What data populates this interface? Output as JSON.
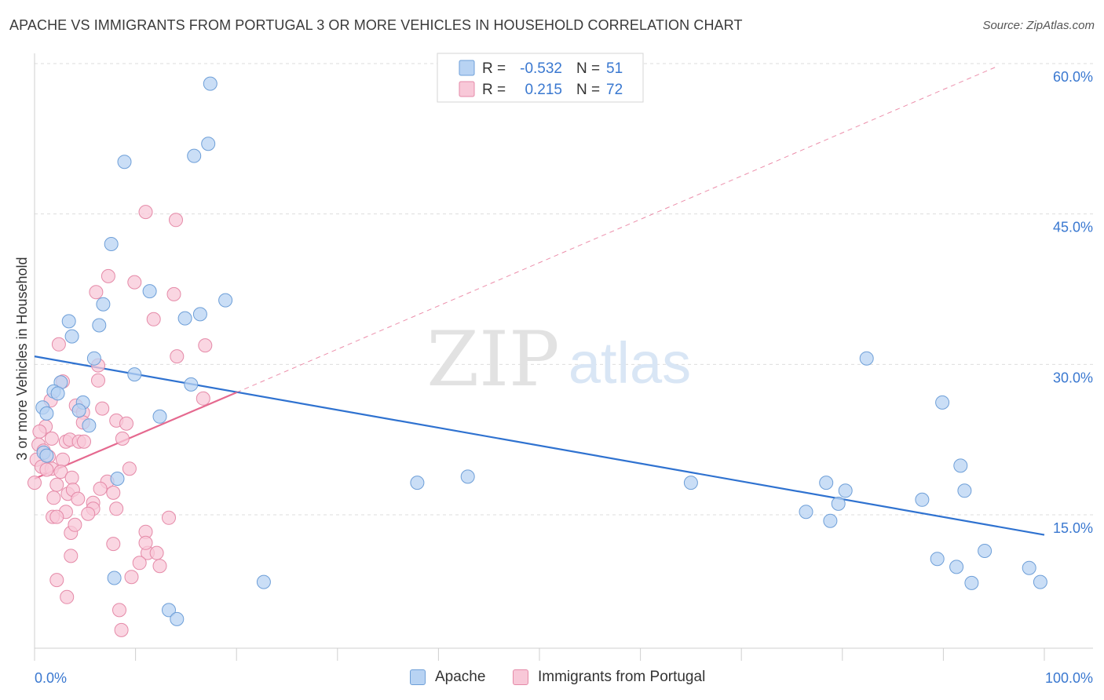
{
  "title": "APACHE VS IMMIGRANTS FROM PORTUGAL 3 OR MORE VEHICLES IN HOUSEHOLD CORRELATION CHART",
  "source": "Source: ZipAtlas.com",
  "watermark": {
    "zip": "ZIP",
    "atlas": "atlas"
  },
  "colors": {
    "apache_fill": "#b8d3f3",
    "apache_stroke": "#6e9fd8",
    "apache_line": "#2f72d0",
    "portugal_fill": "#f8c8d8",
    "portugal_stroke": "#e58aa8",
    "portugal_line": "#e5698f",
    "value_text": "#3a78d0",
    "grid": "#dddddd"
  },
  "legend_top": {
    "rows": [
      {
        "r_label": "R =",
        "r_value": "-0.532",
        "n_label": "N =",
        "n_value": "51"
      },
      {
        "r_label": "R =",
        "r_value": "0.215",
        "n_label": "N =",
        "n_value": "72"
      }
    ]
  },
  "legend_bottom": [
    "Apache",
    "Immigrants from Portugal"
  ],
  "chart_data": {
    "type": "scatter",
    "title": "APACHE VS IMMIGRANTS FROM PORTUGAL 3 OR MORE VEHICLES IN HOUSEHOLD CORRELATION CHART",
    "xlabel": "",
    "ylabel": "3 or more Vehicles in Household",
    "xlim": [
      0,
      100
    ],
    "ylim": [
      0,
      60
    ],
    "x_tick_labels": [
      "0.0%",
      "100.0%"
    ],
    "y_ticks": [
      15,
      30,
      45,
      60
    ],
    "y_tick_labels": [
      "15.0%",
      "30.0%",
      "45.0%",
      "60.0%"
    ],
    "grid": true,
    "legend_position": "top-center",
    "series": [
      {
        "name": "Apache",
        "R": -0.532,
        "N": 51,
        "trend": {
          "x": [
            0,
            100
          ],
          "y": [
            30.8,
            13.0
          ]
        },
        "points": [
          [
            17.4,
            58.0
          ],
          [
            17.2,
            52.0
          ],
          [
            15.8,
            50.8
          ],
          [
            8.9,
            50.2
          ],
          [
            7.6,
            42.0
          ],
          [
            11.4,
            37.3
          ],
          [
            18.9,
            36.4
          ],
          [
            6.8,
            36.0
          ],
          [
            16.4,
            35.0
          ],
          [
            14.9,
            34.6
          ],
          [
            3.4,
            34.3
          ],
          [
            6.4,
            33.9
          ],
          [
            3.7,
            32.8
          ],
          [
            5.9,
            30.6
          ],
          [
            9.9,
            29.0
          ],
          [
            15.5,
            28.0
          ],
          [
            2.6,
            28.2
          ],
          [
            1.9,
            27.3
          ],
          [
            2.3,
            27.1
          ],
          [
            4.8,
            26.2
          ],
          [
            0.8,
            25.7
          ],
          [
            4.4,
            25.4
          ],
          [
            1.2,
            25.1
          ],
          [
            12.4,
            24.8
          ],
          [
            5.4,
            23.9
          ],
          [
            0.9,
            21.2
          ],
          [
            1.2,
            20.9
          ],
          [
            8.2,
            18.6
          ],
          [
            7.9,
            8.7
          ],
          [
            22.7,
            8.3
          ],
          [
            13.3,
            5.5
          ],
          [
            14.1,
            4.6
          ],
          [
            37.9,
            18.2
          ],
          [
            42.9,
            18.8
          ],
          [
            65.0,
            18.2
          ],
          [
            82.4,
            30.6
          ],
          [
            89.9,
            26.2
          ],
          [
            91.7,
            19.9
          ],
          [
            92.1,
            17.4
          ],
          [
            78.4,
            18.2
          ],
          [
            80.3,
            17.4
          ],
          [
            79.6,
            16.1
          ],
          [
            76.4,
            15.3
          ],
          [
            78.8,
            14.4
          ],
          [
            87.9,
            16.5
          ],
          [
            89.4,
            10.6
          ],
          [
            94.1,
            11.4
          ],
          [
            91.3,
            9.8
          ],
          [
            92.8,
            8.2
          ],
          [
            98.5,
            9.7
          ],
          [
            99.6,
            8.3
          ]
        ]
      },
      {
        "name": "Immigrants from Portugal",
        "R": 0.215,
        "N": 72,
        "trend": {
          "x": [
            0,
            20
          ],
          "y": [
            18.6,
            27.2
          ]
        },
        "dash_extension": {
          "x": [
            20,
            95.3
          ],
          "y": [
            27.2,
            59.7
          ]
        },
        "points": [
          [
            11.0,
            45.2
          ],
          [
            14.0,
            44.4
          ],
          [
            7.3,
            38.8
          ],
          [
            9.9,
            38.2
          ],
          [
            6.1,
            37.2
          ],
          [
            13.8,
            37.0
          ],
          [
            11.8,
            34.5
          ],
          [
            2.4,
            32.0
          ],
          [
            16.9,
            31.9
          ],
          [
            14.1,
            30.8
          ],
          [
            6.3,
            29.9
          ],
          [
            6.3,
            28.4
          ],
          [
            2.8,
            28.3
          ],
          [
            16.7,
            26.6
          ],
          [
            1.6,
            26.4
          ],
          [
            4.1,
            25.9
          ],
          [
            6.7,
            25.6
          ],
          [
            4.8,
            25.2
          ],
          [
            8.1,
            24.4
          ],
          [
            9.1,
            24.1
          ],
          [
            4.8,
            24.2
          ],
          [
            1.1,
            23.8
          ],
          [
            0.5,
            23.3
          ],
          [
            1.7,
            22.6
          ],
          [
            3.1,
            22.3
          ],
          [
            3.5,
            22.5
          ],
          [
            4.4,
            22.3
          ],
          [
            4.9,
            22.3
          ],
          [
            8.7,
            22.6
          ],
          [
            0.4,
            22.0
          ],
          [
            0.9,
            21.4
          ],
          [
            1.4,
            20.8
          ],
          [
            0.2,
            20.5
          ],
          [
            2.8,
            20.5
          ],
          [
            0.7,
            19.8
          ],
          [
            1.7,
            19.6
          ],
          [
            2.6,
            19.3
          ],
          [
            9.4,
            19.6
          ],
          [
            3.7,
            18.7
          ],
          [
            7.2,
            18.3
          ],
          [
            2.2,
            18.0
          ],
          [
            0.0,
            18.2
          ],
          [
            6.5,
            17.6
          ],
          [
            7.8,
            17.2
          ],
          [
            3.3,
            17.1
          ],
          [
            3.8,
            17.5
          ],
          [
            1.9,
            16.7
          ],
          [
            4.3,
            16.6
          ],
          [
            5.8,
            16.2
          ],
          [
            5.8,
            15.6
          ],
          [
            8.1,
            15.6
          ],
          [
            3.1,
            15.3
          ],
          [
            5.3,
            15.1
          ],
          [
            1.8,
            14.8
          ],
          [
            2.2,
            14.8
          ],
          [
            13.3,
            14.7
          ],
          [
            11.0,
            13.3
          ],
          [
            3.6,
            13.2
          ],
          [
            7.8,
            12.1
          ],
          [
            11.2,
            11.2
          ],
          [
            12.1,
            11.2
          ],
          [
            3.6,
            10.9
          ],
          [
            10.4,
            10.2
          ],
          [
            12.4,
            9.9
          ],
          [
            9.6,
            8.8
          ],
          [
            2.2,
            8.5
          ],
          [
            3.2,
            6.8
          ],
          [
            8.4,
            5.5
          ],
          [
            8.6,
            3.5
          ],
          [
            11.0,
            12.2
          ],
          [
            4.0,
            14.0
          ],
          [
            1.2,
            19.5
          ]
        ]
      }
    ]
  }
}
